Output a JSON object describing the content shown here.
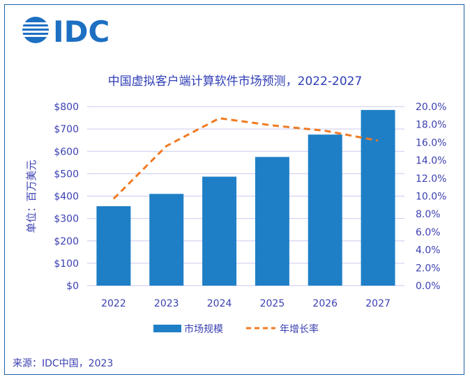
{
  "logo": {
    "text": "IDC"
  },
  "chart_data": {
    "type": "bar",
    "title": "中国虚拟客户端计算软件市场预测，2022-2027",
    "categories": [
      "2022",
      "2023",
      "2024",
      "2025",
      "2026",
      "2027"
    ],
    "series": [
      {
        "name": "市场规模",
        "type": "bar",
        "axis": "left",
        "color": "#1f7fc6",
        "values": [
          355,
          410,
          487,
          575,
          675,
          785
        ]
      },
      {
        "name": "年增长率",
        "type": "line",
        "axis": "right",
        "color": "#f07a22",
        "values": [
          9.7,
          15.6,
          18.7,
          17.9,
          17.3,
          16.2
        ]
      }
    ],
    "ylabel": "单位：百万美元",
    "ylim": [
      0,
      800
    ],
    "yticks": [
      "$800",
      "$700",
      "$600",
      "$500",
      "$400",
      "$300",
      "$200",
      "$100",
      "$0"
    ],
    "y2lim": [
      0,
      20
    ],
    "y2ticks": [
      "20.0%",
      "18.0%",
      "16.0%",
      "14.0%",
      "12.0%",
      "10.0%",
      "8.0%",
      "6.0%",
      "4.0%",
      "2.0%",
      "0.0%"
    ],
    "legend_position": "bottom-center",
    "grid": true
  },
  "source": "来源：IDC中国，2023"
}
